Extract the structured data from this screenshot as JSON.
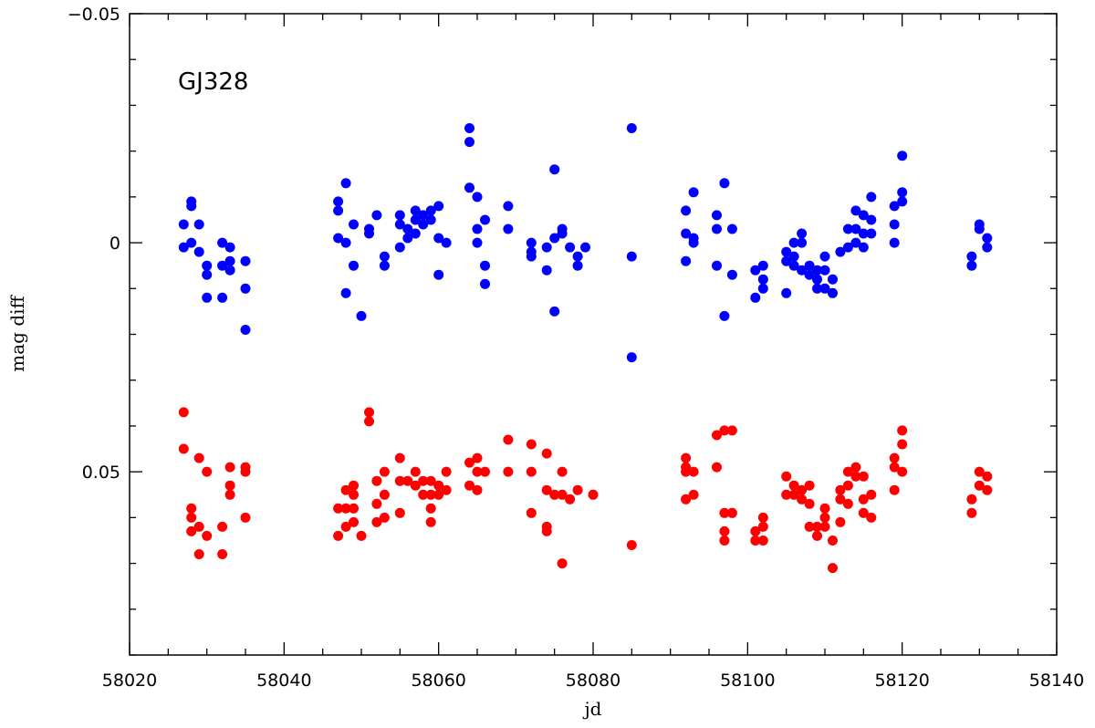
{
  "chart_data": {
    "type": "scatter",
    "title": "",
    "annotation": "GJ328",
    "xlabel": "jd",
    "ylabel": "mag  diff",
    "xlim": [
      58020,
      58140
    ],
    "ylim": [
      0.09,
      -0.05
    ],
    "y_inverted": true,
    "x_ticks": [
      58020,
      58040,
      58060,
      58080,
      58100,
      58120,
      58140
    ],
    "x_tick_labels": [
      "58020",
      "58040",
      "58060",
      "58080",
      "58100",
      "58120",
      "58140"
    ],
    "y_ticks": [
      -0.05,
      0,
      0.05
    ],
    "y_tick_labels": [
      "−0.05",
      "0",
      "0.05"
    ],
    "grid": false,
    "series": [
      {
        "color": "#0000ff",
        "points": [
          [
            58027,
            -0.004
          ],
          [
            58027,
            0.001
          ],
          [
            58028,
            -0.009
          ],
          [
            58028,
            -0.008
          ],
          [
            58028,
            0.0
          ],
          [
            58029,
            -0.004
          ],
          [
            58029,
            0.002
          ],
          [
            58030,
            0.005
          ],
          [
            58030,
            0.007
          ],
          [
            58030,
            0.012
          ],
          [
            58032,
            0.0
          ],
          [
            58032,
            0.005
          ],
          [
            58032,
            0.012
          ],
          [
            58033,
            0.001
          ],
          [
            58033,
            0.004
          ],
          [
            58033,
            0.006
          ],
          [
            58035,
            0.004
          ],
          [
            58035,
            0.01
          ],
          [
            58035,
            0.019
          ],
          [
            58047,
            -0.009
          ],
          [
            58047,
            -0.007
          ],
          [
            58047,
            -0.001
          ],
          [
            58048,
            -0.013
          ],
          [
            58048,
            0.0
          ],
          [
            58048,
            0.011
          ],
          [
            58049,
            -0.004
          ],
          [
            58049,
            0.005
          ],
          [
            58050,
            0.016
          ],
          [
            58051,
            -0.003
          ],
          [
            58051,
            -0.002
          ],
          [
            58052,
            -0.006
          ],
          [
            58053,
            0.003
          ],
          [
            58053,
            0.005
          ],
          [
            58055,
            -0.006
          ],
          [
            58055,
            -0.004
          ],
          [
            58055,
            0.001
          ],
          [
            58056,
            -0.003
          ],
          [
            58056,
            -0.001
          ],
          [
            58057,
            -0.007
          ],
          [
            58057,
            -0.005
          ],
          [
            58057,
            -0.002
          ],
          [
            58058,
            -0.006
          ],
          [
            58058,
            -0.004
          ],
          [
            58059,
            -0.007
          ],
          [
            58059,
            -0.005
          ],
          [
            58060,
            -0.008
          ],
          [
            58060,
            -0.001
          ],
          [
            58060,
            0.007
          ],
          [
            58061,
            0.0
          ],
          [
            58064,
            -0.025
          ],
          [
            58064,
            -0.022
          ],
          [
            58064,
            -0.012
          ],
          [
            58065,
            -0.01
          ],
          [
            58065,
            -0.003
          ],
          [
            58065,
            0.0
          ],
          [
            58066,
            -0.005
          ],
          [
            58066,
            0.005
          ],
          [
            58066,
            0.009
          ],
          [
            58069,
            -0.008
          ],
          [
            58069,
            -0.003
          ],
          [
            58072,
            0.0
          ],
          [
            58072,
            0.002
          ],
          [
            58072,
            0.003
          ],
          [
            58074,
            0.001
          ],
          [
            58074,
            0.006
          ],
          [
            58075,
            -0.016
          ],
          [
            58075,
            -0.001
          ],
          [
            58075,
            0.015
          ],
          [
            58076,
            -0.003
          ],
          [
            58076,
            -0.002
          ],
          [
            58077,
            0.001
          ],
          [
            58078,
            0.003
          ],
          [
            58078,
            0.005
          ],
          [
            58079,
            0.001
          ],
          [
            58085,
            -0.025
          ],
          [
            58085,
            0.003
          ],
          [
            58085,
            0.025
          ],
          [
            58092,
            -0.007
          ],
          [
            58092,
            -0.002
          ],
          [
            58092,
            0.004
          ],
          [
            58093,
            -0.011
          ],
          [
            58093,
            -0.001
          ],
          [
            58093,
            0.0
          ],
          [
            58096,
            -0.006
          ],
          [
            58096,
            -0.003
          ],
          [
            58096,
            0.005
          ],
          [
            58097,
            -0.013
          ],
          [
            58097,
            0.016
          ],
          [
            58098,
            -0.003
          ],
          [
            58098,
            0.007
          ],
          [
            58101,
            0.006
          ],
          [
            58101,
            0.012
          ],
          [
            58102,
            0.005
          ],
          [
            58102,
            0.008
          ],
          [
            58102,
            0.01
          ],
          [
            58105,
            0.002
          ],
          [
            58105,
            0.004
          ],
          [
            58105,
            0.011
          ],
          [
            58106,
            0.0
          ],
          [
            58106,
            0.003
          ],
          [
            58106,
            0.005
          ],
          [
            58107,
            -0.002
          ],
          [
            58107,
            0.0
          ],
          [
            58107,
            0.006
          ],
          [
            58108,
            0.005
          ],
          [
            58108,
            0.007
          ],
          [
            58109,
            0.006
          ],
          [
            58109,
            0.008
          ],
          [
            58109,
            0.01
          ],
          [
            58110,
            0.003
          ],
          [
            58110,
            0.006
          ],
          [
            58110,
            0.01
          ],
          [
            58111,
            0.008
          ],
          [
            58111,
            0.011
          ],
          [
            58112,
            0.002
          ],
          [
            58113,
            -0.003
          ],
          [
            58113,
            0.001
          ],
          [
            58114,
            -0.007
          ],
          [
            58114,
            -0.003
          ],
          [
            58114,
            0.0
          ],
          [
            58115,
            -0.006
          ],
          [
            58115,
            -0.002
          ],
          [
            58115,
            0.001
          ],
          [
            58116,
            -0.01
          ],
          [
            58116,
            -0.005
          ],
          [
            58116,
            -0.002
          ],
          [
            58119,
            -0.008
          ],
          [
            58119,
            -0.004
          ],
          [
            58119,
            0.0
          ],
          [
            58120,
            -0.019
          ],
          [
            58120,
            -0.011
          ],
          [
            58120,
            -0.009
          ],
          [
            58129,
            0.003
          ],
          [
            58129,
            0.005
          ],
          [
            58130,
            -0.004
          ],
          [
            58130,
            -0.003
          ],
          [
            58131,
            -0.001
          ],
          [
            58131,
            0.001
          ]
        ]
      },
      {
        "color": "#ff0000",
        "points": [
          [
            58027,
            0.037
          ],
          [
            58027,
            0.045
          ],
          [
            58028,
            0.058
          ],
          [
            58028,
            0.06
          ],
          [
            58028,
            0.063
          ],
          [
            58029,
            0.062
          ],
          [
            58029,
            0.047
          ],
          [
            58029,
            0.068
          ],
          [
            58030,
            0.05
          ],
          [
            58030,
            0.064
          ],
          [
            58032,
            0.062
          ],
          [
            58032,
            0.068
          ],
          [
            58033,
            0.049
          ],
          [
            58033,
            0.053
          ],
          [
            58033,
            0.055
          ],
          [
            58035,
            0.049
          ],
          [
            58035,
            0.05
          ],
          [
            58035,
            0.06
          ],
          [
            58047,
            0.058
          ],
          [
            58047,
            0.064
          ],
          [
            58048,
            0.054
          ],
          [
            58048,
            0.058
          ],
          [
            58048,
            0.062
          ],
          [
            58049,
            0.053
          ],
          [
            58049,
            0.055
          ],
          [
            58049,
            0.058
          ],
          [
            58049,
            0.061
          ],
          [
            58050,
            0.064
          ],
          [
            58051,
            0.037
          ],
          [
            58051,
            0.039
          ],
          [
            58052,
            0.052
          ],
          [
            58052,
            0.057
          ],
          [
            58052,
            0.061
          ],
          [
            58053,
            0.05
          ],
          [
            58053,
            0.055
          ],
          [
            58053,
            0.06
          ],
          [
            58055,
            0.047
          ],
          [
            58055,
            0.052
          ],
          [
            58055,
            0.059
          ],
          [
            58056,
            0.052
          ],
          [
            58057,
            0.05
          ],
          [
            58057,
            0.053
          ],
          [
            58058,
            0.052
          ],
          [
            58058,
            0.055
          ],
          [
            58059,
            0.052
          ],
          [
            58059,
            0.055
          ],
          [
            58059,
            0.058
          ],
          [
            58059,
            0.061
          ],
          [
            58060,
            0.053
          ],
          [
            58060,
            0.055
          ],
          [
            58061,
            0.05
          ],
          [
            58061,
            0.054
          ],
          [
            58064,
            0.048
          ],
          [
            58064,
            0.053
          ],
          [
            58065,
            0.047
          ],
          [
            58065,
            0.05
          ],
          [
            58065,
            0.054
          ],
          [
            58066,
            0.05
          ],
          [
            58069,
            0.043
          ],
          [
            58069,
            0.05
          ],
          [
            58072,
            0.044
          ],
          [
            58072,
            0.05
          ],
          [
            58072,
            0.059
          ],
          [
            58074,
            0.046
          ],
          [
            58074,
            0.054
          ],
          [
            58074,
            0.062
          ],
          [
            58074,
            0.063
          ],
          [
            58075,
            0.055
          ],
          [
            58076,
            0.05
          ],
          [
            58076,
            0.055
          ],
          [
            58076,
            0.07
          ],
          [
            58077,
            0.056
          ],
          [
            58078,
            0.054
          ],
          [
            58080,
            0.055
          ],
          [
            58085,
            0.066
          ],
          [
            58092,
            0.047
          ],
          [
            58092,
            0.049
          ],
          [
            58092,
            0.05
          ],
          [
            58092,
            0.056
          ],
          [
            58093,
            0.05
          ],
          [
            58093,
            0.055
          ],
          [
            58096,
            0.042
          ],
          [
            58096,
            0.049
          ],
          [
            58097,
            0.041
          ],
          [
            58097,
            0.059
          ],
          [
            58097,
            0.063
          ],
          [
            58097,
            0.065
          ],
          [
            58098,
            0.041
          ],
          [
            58098,
            0.059
          ],
          [
            58101,
            0.063
          ],
          [
            58101,
            0.065
          ],
          [
            58102,
            0.06
          ],
          [
            58102,
            0.062
          ],
          [
            58102,
            0.065
          ],
          [
            58105,
            0.051
          ],
          [
            58105,
            0.055
          ],
          [
            58106,
            0.053
          ],
          [
            58106,
            0.055
          ],
          [
            58107,
            0.054
          ],
          [
            58107,
            0.056
          ],
          [
            58108,
            0.053
          ],
          [
            58108,
            0.057
          ],
          [
            58108,
            0.062
          ],
          [
            58109,
            0.062
          ],
          [
            58109,
            0.064
          ],
          [
            58110,
            0.058
          ],
          [
            58110,
            0.06
          ],
          [
            58110,
            0.062
          ],
          [
            58111,
            0.065
          ],
          [
            58111,
            0.071
          ],
          [
            58112,
            0.054
          ],
          [
            58112,
            0.056
          ],
          [
            58112,
            0.061
          ],
          [
            58113,
            0.05
          ],
          [
            58113,
            0.053
          ],
          [
            58113,
            0.057
          ],
          [
            58114,
            0.049
          ],
          [
            58114,
            0.051
          ],
          [
            58115,
            0.051
          ],
          [
            58115,
            0.056
          ],
          [
            58115,
            0.059
          ],
          [
            58116,
            0.055
          ],
          [
            58116,
            0.06
          ],
          [
            58119,
            0.047
          ],
          [
            58119,
            0.049
          ],
          [
            58119,
            0.054
          ],
          [
            58120,
            0.041
          ],
          [
            58120,
            0.044
          ],
          [
            58120,
            0.05
          ],
          [
            58129,
            0.056
          ],
          [
            58129,
            0.059
          ],
          [
            58130,
            0.05
          ],
          [
            58130,
            0.053
          ],
          [
            58131,
            0.051
          ],
          [
            58131,
            0.054
          ]
        ]
      }
    ]
  }
}
